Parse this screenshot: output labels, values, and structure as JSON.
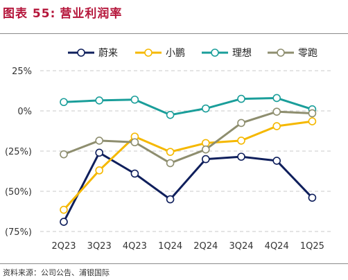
{
  "header": {
    "label": "图表 55:",
    "title": "营业利润率"
  },
  "footer": {
    "source": "资料来源：公司公告、浦银国际"
  },
  "colors": {
    "title": "#b5163b",
    "nio": "#0f1f5c",
    "xpeng": "#f5b800",
    "li": "#1a9e9a",
    "leap": "#8e8e6f",
    "grid": "#c8c8c8"
  },
  "chart_data": {
    "type": "line",
    "categories": [
      "2Q23",
      "3Q23",
      "4Q23",
      "1Q24",
      "2Q24",
      "3Q24",
      "4Q24",
      "1Q25"
    ],
    "ylim": [
      -75,
      25
    ],
    "yticks": [
      {
        "value": 25,
        "label": "25%"
      },
      {
        "value": 0,
        "label": "0%"
      },
      {
        "value": -25,
        "label": "(25%)"
      },
      {
        "value": -50,
        "label": "(50%)"
      },
      {
        "value": -75,
        "label": "(75%)"
      }
    ],
    "grid": "horizontal dashed",
    "legend_position": "top",
    "series": [
      {
        "name": "蔚来",
        "color": "#0f1f5c",
        "values": [
          -69,
          -26,
          -39,
          -55,
          -30,
          -28.5,
          -31,
          -54
        ]
      },
      {
        "name": "小鹏",
        "color": "#f5b800",
        "values": [
          -61.5,
          -37,
          -16,
          -25.5,
          -20,
          -18.5,
          -9.5,
          -6.5
        ]
      },
      {
        "name": "理想",
        "color": "#1a9e9a",
        "values": [
          5.5,
          6.5,
          7,
          -2.5,
          1.5,
          7.5,
          8,
          1
        ]
      },
      {
        "name": "零跑",
        "color": "#8e8e6f",
        "values": [
          -27,
          -18.5,
          -19.5,
          -32.5,
          -24,
          -7.5,
          -0.5,
          -1.5
        ]
      }
    ]
  }
}
